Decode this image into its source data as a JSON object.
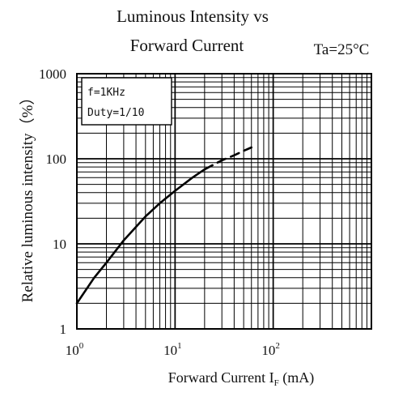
{
  "chart_data": {
    "type": "line",
    "title_line1": "Luminous Intensity vs",
    "title_line2": "Forward Current",
    "condition": "Ta=25°C",
    "xlabel": "Forward Current   I",
    "xlabel_sub": "F",
    "xlabel_unit": " (mA)",
    "ylabel": "Relative luminous intensity（%）",
    "x_scale": "log",
    "y_scale": "log",
    "xlim": [
      1,
      1000
    ],
    "ylim": [
      1,
      1000
    ],
    "grid": true,
    "x_ticks": [
      {
        "base": "10",
        "exp": "0"
      },
      {
        "base": "10",
        "exp": "1"
      },
      {
        "base": "10",
        "exp": "2"
      }
    ],
    "y_ticks": [
      "1",
      "10",
      "100",
      "1000"
    ],
    "annotations": [
      "f=1KHz",
      "Duty=1/10"
    ],
    "series": [
      {
        "style": "solid",
        "x": [
          1,
          1.5,
          2,
          3,
          5,
          7,
          10,
          15,
          20
        ],
        "y": [
          2,
          4,
          6,
          11,
          21,
          30,
          42,
          60,
          75
        ]
      },
      {
        "style": "dashed",
        "x": [
          20,
          25,
          30,
          40,
          50,
          60
        ],
        "y": [
          75,
          86,
          96,
          110,
          124,
          136
        ]
      }
    ]
  }
}
